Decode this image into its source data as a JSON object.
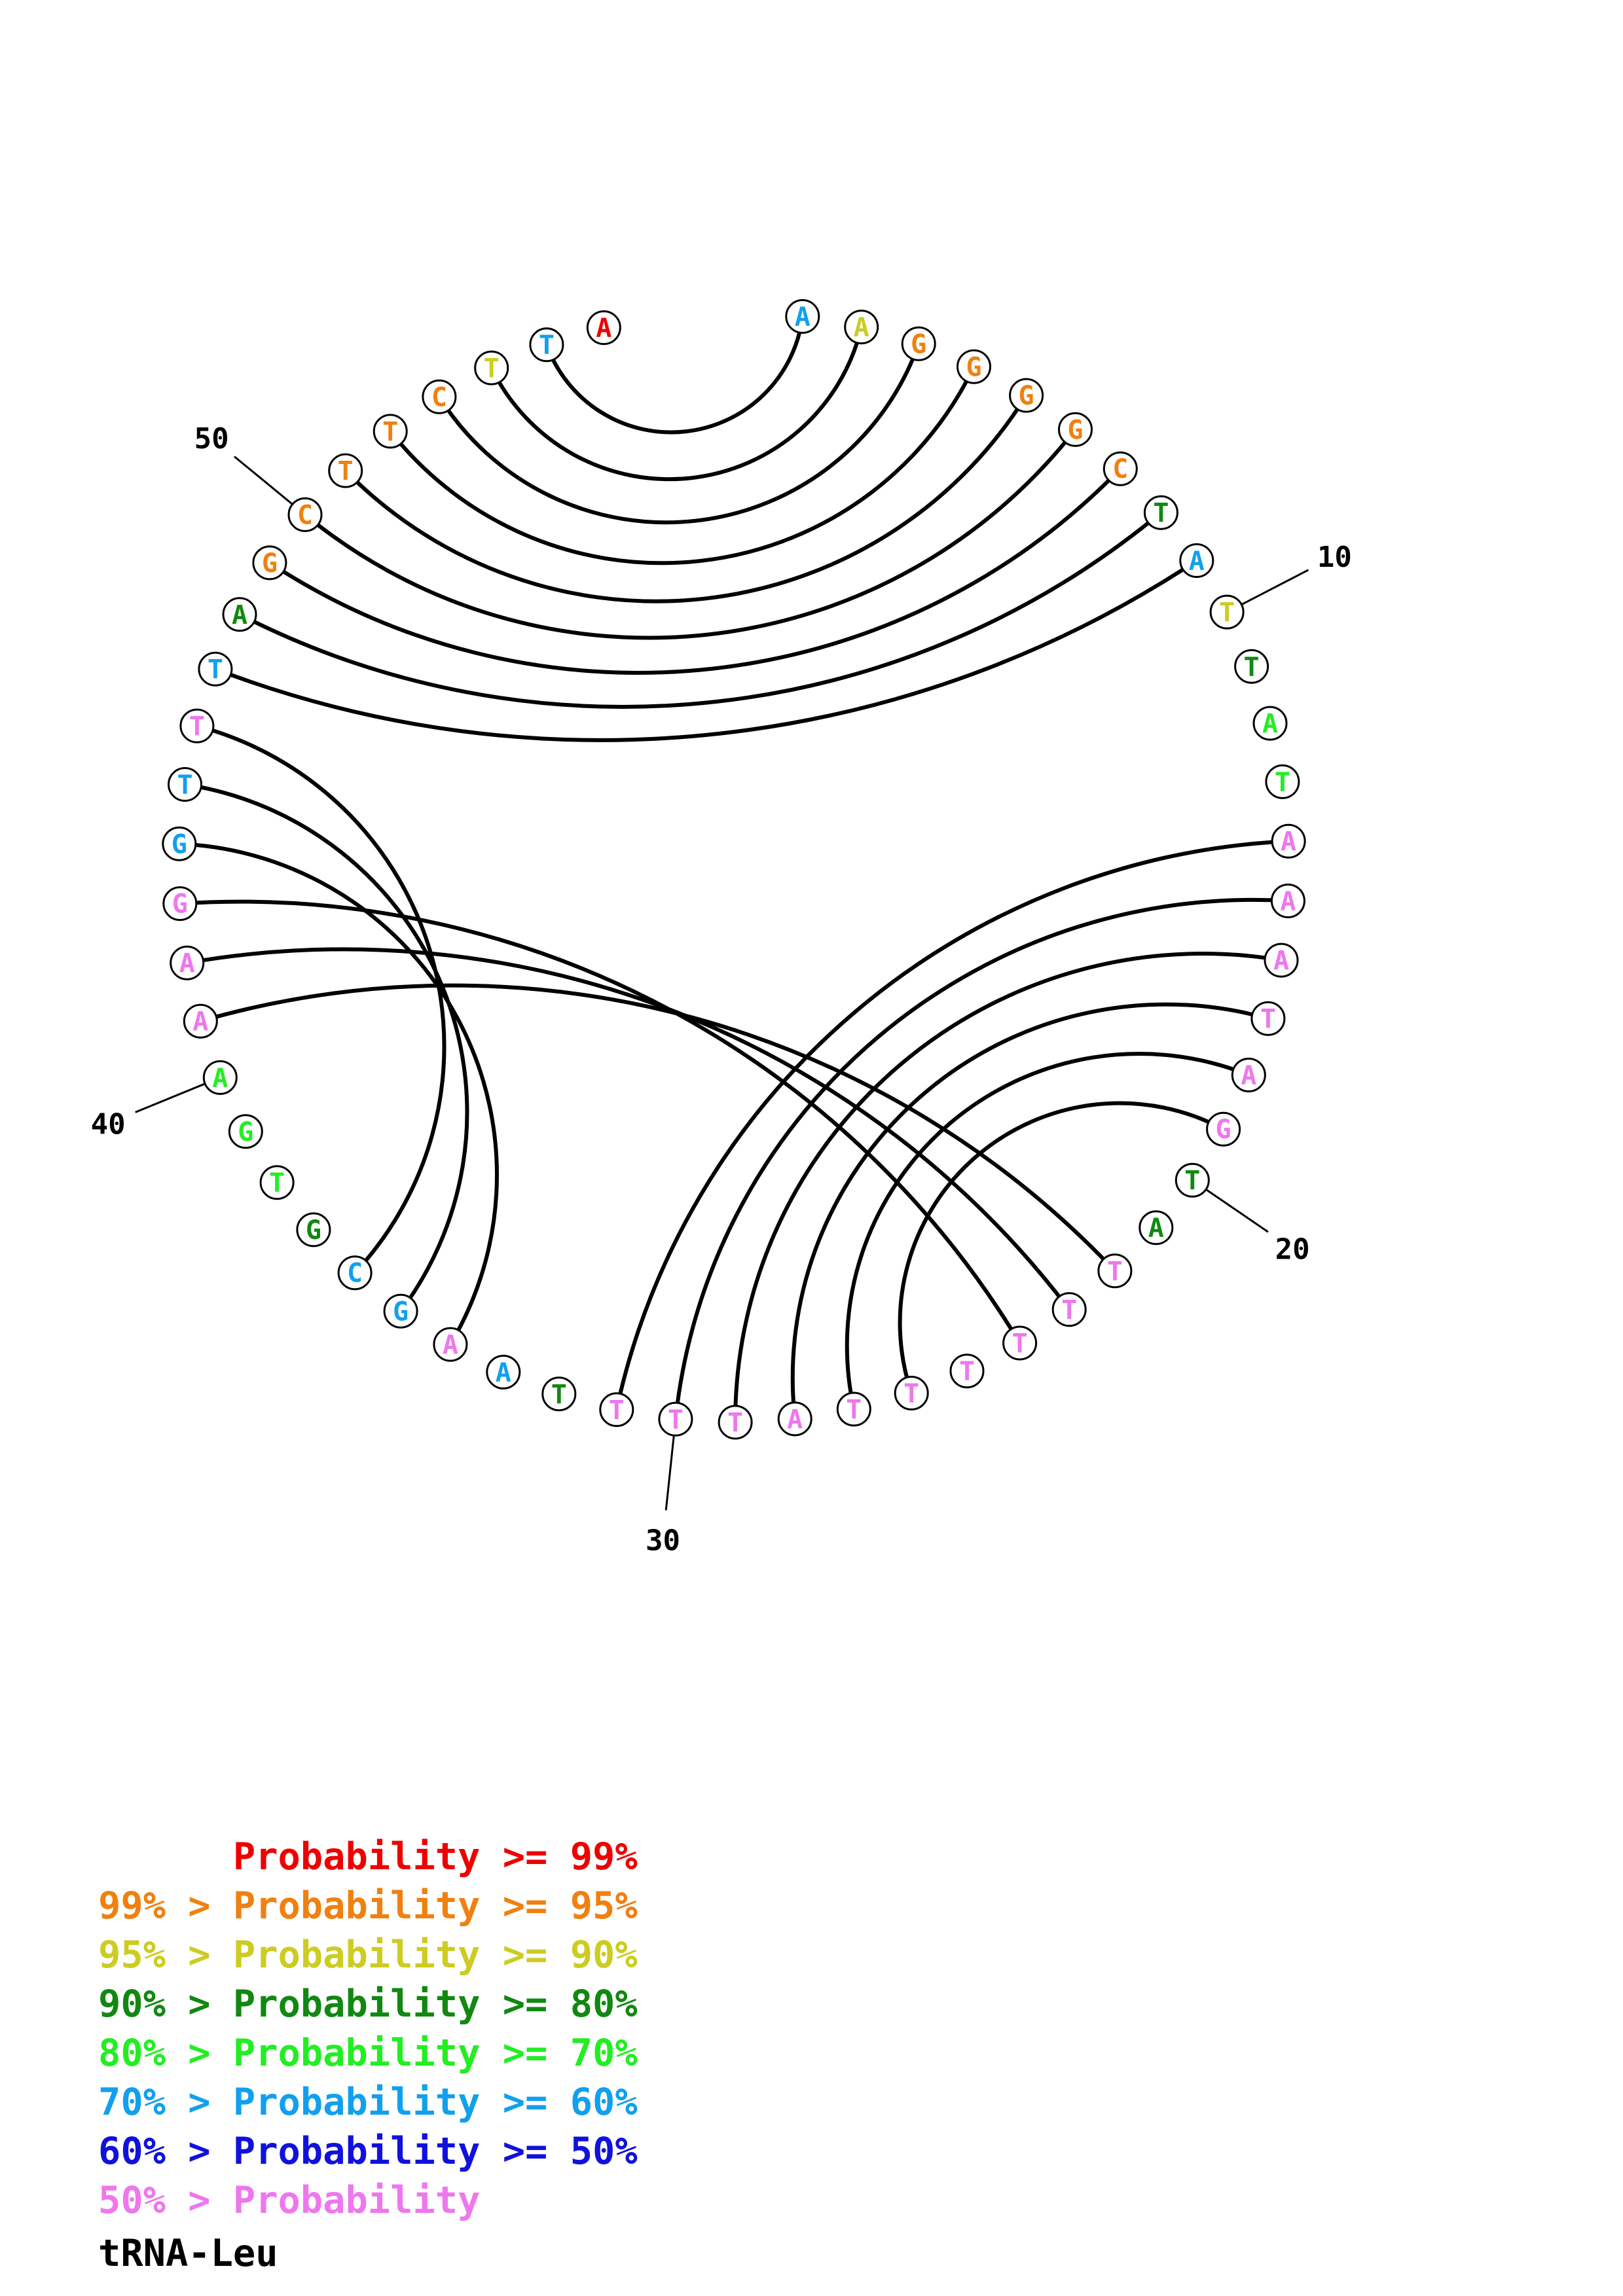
{
  "title": "tRNA-Leu",
  "colors": {
    "p99": "#ee0000",
    "p95": "#f08010",
    "p90": "#cccc22",
    "p80": "#118811",
    "p70": "#22ee22",
    "p60": "#11a0ee",
    "p50": "#1111dd",
    "plow": "#ee77ee"
  },
  "sequence": [
    {
      "base": "A",
      "color": "p60"
    },
    {
      "base": "A",
      "color": "p90"
    },
    {
      "base": "G",
      "color": "p95"
    },
    {
      "base": "G",
      "color": "p95"
    },
    {
      "base": "G",
      "color": "p95"
    },
    {
      "base": "G",
      "color": "p95"
    },
    {
      "base": "C",
      "color": "p95"
    },
    {
      "base": "T",
      "color": "p80"
    },
    {
      "base": "A",
      "color": "p60"
    },
    {
      "base": "T",
      "color": "p90"
    },
    {
      "base": "T",
      "color": "p80"
    },
    {
      "base": "A",
      "color": "p70"
    },
    {
      "base": "T",
      "color": "p70"
    },
    {
      "base": "A",
      "color": "plow"
    },
    {
      "base": "A",
      "color": "plow"
    },
    {
      "base": "A",
      "color": "plow"
    },
    {
      "base": "T",
      "color": "plow"
    },
    {
      "base": "A",
      "color": "plow"
    },
    {
      "base": "G",
      "color": "plow"
    },
    {
      "base": "T",
      "color": "p80"
    },
    {
      "base": "A",
      "color": "p80"
    },
    {
      "base": "T",
      "color": "plow"
    },
    {
      "base": "T",
      "color": "plow"
    },
    {
      "base": "T",
      "color": "plow"
    },
    {
      "base": "T",
      "color": "plow"
    },
    {
      "base": "T",
      "color": "plow"
    },
    {
      "base": "T",
      "color": "plow"
    },
    {
      "base": "A",
      "color": "plow"
    },
    {
      "base": "T",
      "color": "plow"
    },
    {
      "base": "T",
      "color": "plow"
    },
    {
      "base": "T",
      "color": "plow"
    },
    {
      "base": "T",
      "color": "p80"
    },
    {
      "base": "A",
      "color": "p60"
    },
    {
      "base": "A",
      "color": "plow"
    },
    {
      "base": "G",
      "color": "p60"
    },
    {
      "base": "C",
      "color": "p60"
    },
    {
      "base": "G",
      "color": "p80"
    },
    {
      "base": "T",
      "color": "p70"
    },
    {
      "base": "G",
      "color": "p70"
    },
    {
      "base": "A",
      "color": "p70"
    },
    {
      "base": "A",
      "color": "plow"
    },
    {
      "base": "A",
      "color": "plow"
    },
    {
      "base": "G",
      "color": "plow"
    },
    {
      "base": "G",
      "color": "p60"
    },
    {
      "base": "T",
      "color": "p60"
    },
    {
      "base": "T",
      "color": "plow"
    },
    {
      "base": "T",
      "color": "p60"
    },
    {
      "base": "A",
      "color": "p80"
    },
    {
      "base": "G",
      "color": "p95"
    },
    {
      "base": "C",
      "color": "p95"
    },
    {
      "base": "T",
      "color": "p95"
    },
    {
      "base": "T",
      "color": "p95"
    },
    {
      "base": "C",
      "color": "p95"
    },
    {
      "base": "T",
      "color": "p90"
    },
    {
      "base": "T",
      "color": "p60"
    },
    {
      "base": "A",
      "color": "p99"
    }
  ],
  "pairs": [
    [
      1,
      55
    ],
    [
      2,
      54
    ],
    [
      3,
      53
    ],
    [
      4,
      52
    ],
    [
      5,
      51
    ],
    [
      6,
      50
    ],
    [
      7,
      49
    ],
    [
      8,
      48
    ],
    [
      9,
      47
    ],
    [
      14,
      31
    ],
    [
      15,
      30
    ],
    [
      16,
      29
    ],
    [
      17,
      28
    ],
    [
      18,
      27
    ],
    [
      19,
      26
    ],
    [
      22,
      41
    ],
    [
      23,
      42
    ],
    [
      24,
      43
    ],
    [
      34,
      44
    ],
    [
      35,
      45
    ],
    [
      36,
      46
    ]
  ],
  "position_labels": [
    {
      "index": 10,
      "text": "10"
    },
    {
      "index": 20,
      "text": "20"
    },
    {
      "index": 30,
      "text": "30"
    },
    {
      "index": 40,
      "text": "40"
    },
    {
      "index": 50,
      "text": "50"
    }
  ],
  "legend": [
    {
      "prefix": "",
      "gt": "",
      "word": "Probability",
      "ge": ">=",
      "suffix": "99%",
      "color": "p99"
    },
    {
      "prefix": "99%",
      "gt": ">",
      "word": "Probability",
      "ge": ">=",
      "suffix": "95%",
      "color": "p95"
    },
    {
      "prefix": "95%",
      "gt": ">",
      "word": "Probability",
      "ge": ">=",
      "suffix": "90%",
      "color": "p90"
    },
    {
      "prefix": "90%",
      "gt": ">",
      "word": "Probability",
      "ge": ">=",
      "suffix": "80%",
      "color": "p80"
    },
    {
      "prefix": "80%",
      "gt": ">",
      "word": "Probability",
      "ge": ">=",
      "suffix": "70%",
      "color": "p70"
    },
    {
      "prefix": "70%",
      "gt": ">",
      "word": "Probability",
      "ge": ">=",
      "suffix": "60%",
      "color": "p60"
    },
    {
      "prefix": "60%",
      "gt": ">",
      "word": "Probability",
      "ge": ">=",
      "suffix": "50%",
      "color": "p50"
    },
    {
      "prefix": "50%",
      "gt": ">",
      "word": "Probability",
      "ge": "",
      "suffix": "",
      "color": "plow"
    }
  ]
}
